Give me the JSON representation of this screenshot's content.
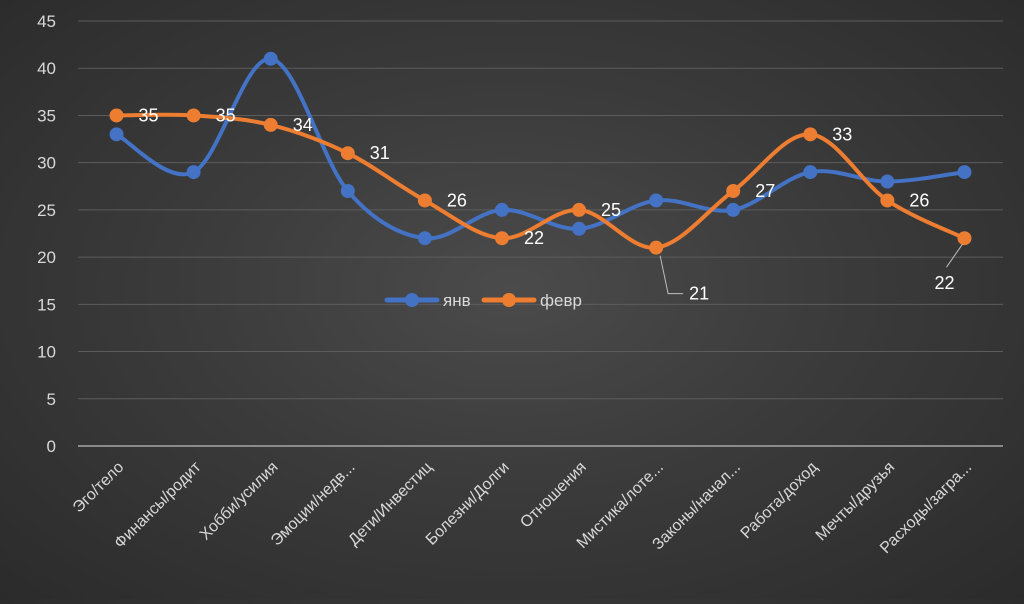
{
  "chart_data": {
    "type": "line",
    "smooth": true,
    "categories": [
      "Эго/тело",
      "Финансы/родит",
      "Хобби/усилия",
      "Эмоции/недв...",
      "Дети/Инвестиц",
      "Болезни/Долги",
      "Отношения",
      "Мистика/лоте...",
      "Законы/начал...",
      "Работа/доход",
      "Мечты/друзья",
      "Расходы/загра..."
    ],
    "series": [
      {
        "name": "янв",
        "color": "#4472C4",
        "values": [
          33,
          29,
          41,
          27,
          22,
          25,
          23,
          26,
          25,
          29,
          28,
          29
        ],
        "show_labels": false
      },
      {
        "name": "февр",
        "color": "#ED7D31",
        "values": [
          35,
          35,
          34,
          31,
          26,
          22,
          25,
          21,
          27,
          33,
          26,
          22
        ],
        "show_labels": true
      }
    ],
    "data_labels": [
      "35",
      "35",
      "34",
      "31",
      "26",
      "22",
      "25",
      "21",
      "27",
      "33",
      "26",
      "22"
    ],
    "y_ticks": [
      "0",
      "5",
      "10",
      "15",
      "20",
      "25",
      "30",
      "35",
      "40",
      "45"
    ],
    "ylim": [
      0,
      45
    ],
    "ystep": 5,
    "gridlines": true,
    "legend_position": "center"
  }
}
